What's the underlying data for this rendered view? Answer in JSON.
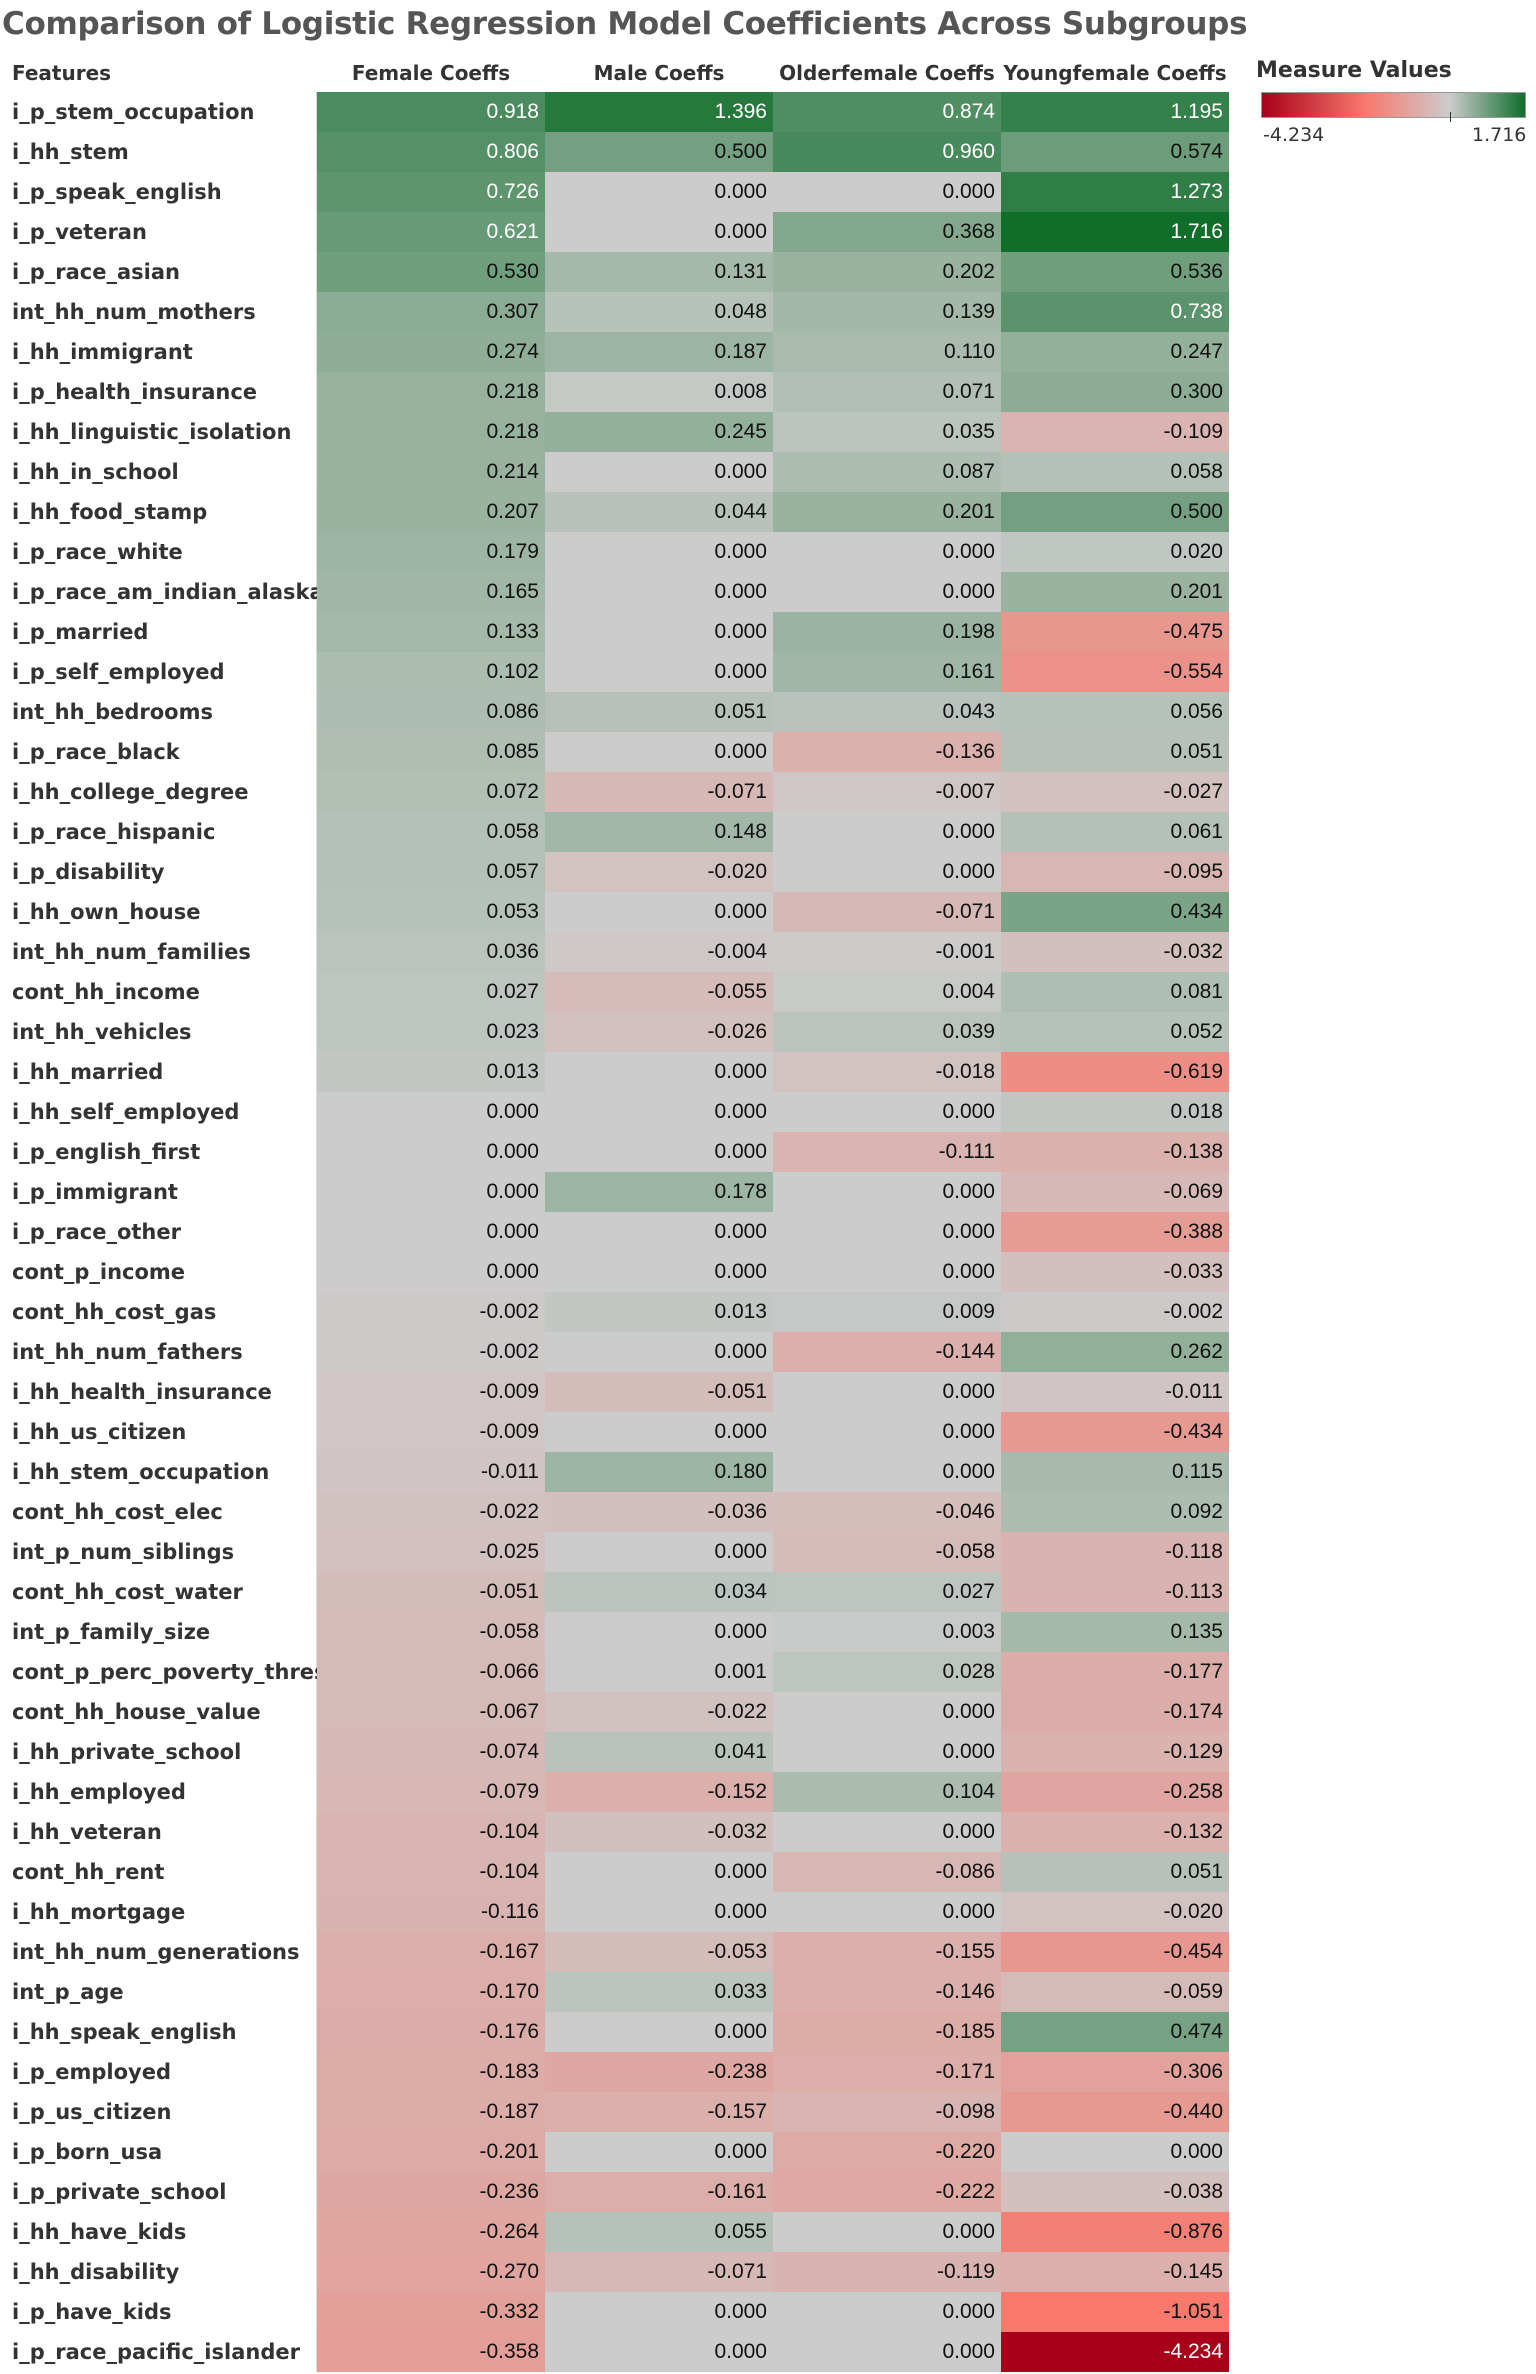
{
  "title": "Comparison of Logistic Regression Model Coefficients Across Subgroups",
  "legend": {
    "title": "Measure Values",
    "min_label": "-4.234",
    "max_label": "1.716",
    "min": -4.234,
    "max": 1.716,
    "colors": {
      "negative_end": "#a8001a",
      "neutral": "#cccccc",
      "positive_end": "#0e6e2a"
    }
  },
  "chart_data": {
    "type": "heatmap",
    "title": "Comparison of Logistic Regression Model Coefficients Across Subgroups",
    "row_header": "Features",
    "columns": [
      "Female Coeffs",
      "Male Coeffs",
      "Olderfemale Coeffs",
      "Youngfemale Coeffs"
    ],
    "rows": [
      {
        "feature": "i_p_stem_occupation",
        "values": [
          0.918,
          1.396,
          0.874,
          1.195
        ]
      },
      {
        "feature": "i_hh_stem",
        "values": [
          0.806,
          0.5,
          0.96,
          0.574
        ]
      },
      {
        "feature": "i_p_speak_english",
        "values": [
          0.726,
          0.0,
          0.0,
          1.273
        ]
      },
      {
        "feature": "i_p_veteran",
        "values": [
          0.621,
          0.0,
          0.368,
          1.716
        ]
      },
      {
        "feature": "i_p_race_asian",
        "values": [
          0.53,
          0.131,
          0.202,
          0.536
        ]
      },
      {
        "feature": "int_hh_num_mothers",
        "values": [
          0.307,
          0.048,
          0.139,
          0.738
        ]
      },
      {
        "feature": "i_hh_immigrant",
        "values": [
          0.274,
          0.187,
          0.11,
          0.247
        ]
      },
      {
        "feature": "i_p_health_insurance",
        "values": [
          0.218,
          0.008,
          0.071,
          0.3
        ]
      },
      {
        "feature": "i_hh_linguistic_isolation",
        "values": [
          0.218,
          0.245,
          0.035,
          -0.109
        ]
      },
      {
        "feature": "i_hh_in_school",
        "values": [
          0.214,
          0.0,
          0.087,
          0.058
        ]
      },
      {
        "feature": "i_hh_food_stamp",
        "values": [
          0.207,
          0.044,
          0.201,
          0.5
        ]
      },
      {
        "feature": "i_p_race_white",
        "values": [
          0.179,
          0.0,
          0.0,
          0.02
        ]
      },
      {
        "feature": "i_p_race_am_indian_alaska",
        "values": [
          0.165,
          0.0,
          0.0,
          0.201
        ]
      },
      {
        "feature": "i_p_married",
        "values": [
          0.133,
          0.0,
          0.198,
          -0.475
        ]
      },
      {
        "feature": "i_p_self_employed",
        "values": [
          0.102,
          0.0,
          0.161,
          -0.554
        ]
      },
      {
        "feature": "int_hh_bedrooms",
        "values": [
          0.086,
          0.051,
          0.043,
          0.056
        ]
      },
      {
        "feature": "i_p_race_black",
        "values": [
          0.085,
          0.0,
          -0.136,
          0.051
        ]
      },
      {
        "feature": "i_hh_college_degree",
        "values": [
          0.072,
          -0.071,
          -0.007,
          -0.027
        ]
      },
      {
        "feature": "i_p_race_hispanic",
        "values": [
          0.058,
          0.148,
          0.0,
          0.061
        ]
      },
      {
        "feature": "i_p_disability",
        "values": [
          0.057,
          -0.02,
          0.0,
          -0.095
        ]
      },
      {
        "feature": "i_hh_own_house",
        "values": [
          0.053,
          0.0,
          -0.071,
          0.434
        ]
      },
      {
        "feature": "int_hh_num_families",
        "values": [
          0.036,
          -0.004,
          -0.001,
          -0.032
        ]
      },
      {
        "feature": "cont_hh_income",
        "values": [
          0.027,
          -0.055,
          0.004,
          0.081
        ]
      },
      {
        "feature": "int_hh_vehicles",
        "values": [
          0.023,
          -0.026,
          0.039,
          0.052
        ]
      },
      {
        "feature": "i_hh_married",
        "values": [
          0.013,
          0.0,
          -0.018,
          -0.619
        ]
      },
      {
        "feature": "i_hh_self_employed",
        "values": [
          0.0,
          0.0,
          0.0,
          0.018
        ]
      },
      {
        "feature": "i_p_english_first",
        "values": [
          0.0,
          0.0,
          -0.111,
          -0.138
        ]
      },
      {
        "feature": "i_p_immigrant",
        "values": [
          0.0,
          0.178,
          0.0,
          -0.069
        ]
      },
      {
        "feature": "i_p_race_other",
        "values": [
          0.0,
          0.0,
          0.0,
          -0.388
        ]
      },
      {
        "feature": "cont_p_income",
        "values": [
          0.0,
          0.0,
          0.0,
          -0.033
        ]
      },
      {
        "feature": "cont_hh_cost_gas",
        "values": [
          -0.002,
          0.013,
          0.009,
          -0.002
        ]
      },
      {
        "feature": "int_hh_num_fathers",
        "values": [
          -0.002,
          0.0,
          -0.144,
          0.262
        ]
      },
      {
        "feature": "i_hh_health_insurance",
        "values": [
          -0.009,
          -0.051,
          0.0,
          -0.011
        ]
      },
      {
        "feature": "i_hh_us_citizen",
        "values": [
          -0.009,
          0.0,
          0.0,
          -0.434
        ]
      },
      {
        "feature": "i_hh_stem_occupation",
        "values": [
          -0.011,
          0.18,
          0.0,
          0.115
        ]
      },
      {
        "feature": "cont_hh_cost_elec",
        "values": [
          -0.022,
          -0.036,
          -0.046,
          0.092
        ]
      },
      {
        "feature": "int_p_num_siblings",
        "values": [
          -0.025,
          0.0,
          -0.058,
          -0.118
        ]
      },
      {
        "feature": "cont_hh_cost_water",
        "values": [
          -0.051,
          0.034,
          0.027,
          -0.113
        ]
      },
      {
        "feature": "int_p_family_size",
        "values": [
          -0.058,
          0.0,
          0.003,
          0.135
        ]
      },
      {
        "feature": "cont_p_perc_poverty_thres..",
        "values": [
          -0.066,
          0.001,
          0.028,
          -0.177
        ]
      },
      {
        "feature": "cont_hh_house_value",
        "values": [
          -0.067,
          -0.022,
          0.0,
          -0.174
        ]
      },
      {
        "feature": "i_hh_private_school",
        "values": [
          -0.074,
          0.041,
          0.0,
          -0.129
        ]
      },
      {
        "feature": "i_hh_employed",
        "values": [
          -0.079,
          -0.152,
          0.104,
          -0.258
        ]
      },
      {
        "feature": "i_hh_veteran",
        "values": [
          -0.104,
          -0.032,
          0.0,
          -0.132
        ]
      },
      {
        "feature": "cont_hh_rent",
        "values": [
          -0.104,
          0.0,
          -0.086,
          0.051
        ]
      },
      {
        "feature": "i_hh_mortgage",
        "values": [
          -0.116,
          0.0,
          0.0,
          -0.02
        ]
      },
      {
        "feature": "int_hh_num_generations",
        "values": [
          -0.167,
          -0.053,
          -0.155,
          -0.454
        ]
      },
      {
        "feature": "int_p_age",
        "values": [
          -0.17,
          0.033,
          -0.146,
          -0.059
        ]
      },
      {
        "feature": "i_hh_speak_english",
        "values": [
          -0.176,
          0.0,
          -0.185,
          0.474
        ]
      },
      {
        "feature": "i_p_employed",
        "values": [
          -0.183,
          -0.238,
          -0.171,
          -0.306
        ]
      },
      {
        "feature": "i_p_us_citizen",
        "values": [
          -0.187,
          -0.157,
          -0.098,
          -0.44
        ]
      },
      {
        "feature": "i_p_born_usa",
        "values": [
          -0.201,
          0.0,
          -0.22,
          0.0
        ]
      },
      {
        "feature": "i_p_private_school",
        "values": [
          -0.236,
          -0.161,
          -0.222,
          -0.038
        ]
      },
      {
        "feature": "i_hh_have_kids",
        "values": [
          -0.264,
          0.055,
          0.0,
          -0.876
        ]
      },
      {
        "feature": "i_hh_disability",
        "values": [
          -0.27,
          -0.071,
          -0.119,
          -0.145
        ]
      },
      {
        "feature": "i_p_have_kids",
        "values": [
          -0.332,
          0.0,
          0.0,
          -1.051
        ]
      },
      {
        "feature": "i_p_race_pacific_islander",
        "values": [
          -0.358,
          0.0,
          0.0,
          -4.234
        ]
      }
    ]
  }
}
